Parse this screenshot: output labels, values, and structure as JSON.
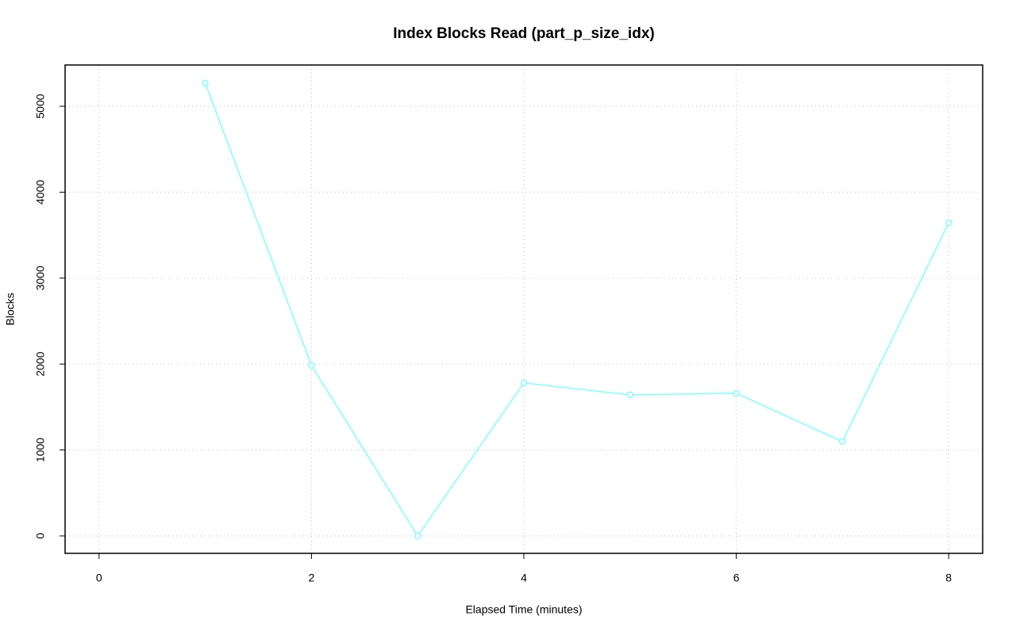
{
  "chart_data": {
    "type": "line",
    "title": "Index Blocks Read (part_p_size_idx)",
    "x_label": "Elapsed Time (minutes)",
    "y_label": "Blocks",
    "x": [
      1,
      2,
      3,
      4,
      5,
      6,
      7,
      8
    ],
    "series": [
      {
        "name": "part_p_size_idx",
        "color": "#80ffff",
        "values": [
          5268,
          1983,
          0,
          1780,
          1642,
          1660,
          1098,
          3644
        ]
      }
    ],
    "xlim": [
      -0.32,
      8.32
    ],
    "ylim": [
      -203,
      5480
    ],
    "xticks": [
      0,
      2,
      4,
      6,
      8
    ],
    "yticks": [
      0,
      1000,
      2000,
      3000,
      4000,
      5000
    ],
    "grid": true
  }
}
